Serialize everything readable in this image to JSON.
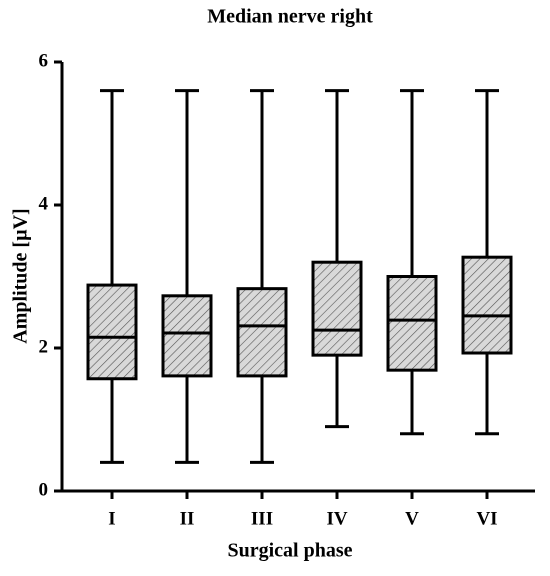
{
  "chart_data": {
    "type": "box",
    "title": "Median nerve right",
    "x_label": "Surgical phase",
    "y_label": "Amplitude [µV]",
    "categories": [
      "I",
      "II",
      "III",
      "IV",
      "V",
      "VI"
    ],
    "min": [
      0.4,
      0.4,
      0.4,
      0.9,
      0.8,
      0.8
    ],
    "q1": [
      1.57,
      1.61,
      1.61,
      1.9,
      1.69,
      1.93
    ],
    "median": [
      2.15,
      2.21,
      2.31,
      2.25,
      2.39,
      2.45
    ],
    "q3": [
      2.88,
      2.73,
      2.83,
      3.2,
      3.0,
      3.27
    ],
    "max": [
      5.6,
      5.6,
      5.6,
      5.6,
      5.6,
      5.6
    ],
    "color": "#d9d9d9",
    "ylim": [
      0,
      6
    ],
    "yticks": [
      0,
      2,
      4,
      6
    ]
  }
}
